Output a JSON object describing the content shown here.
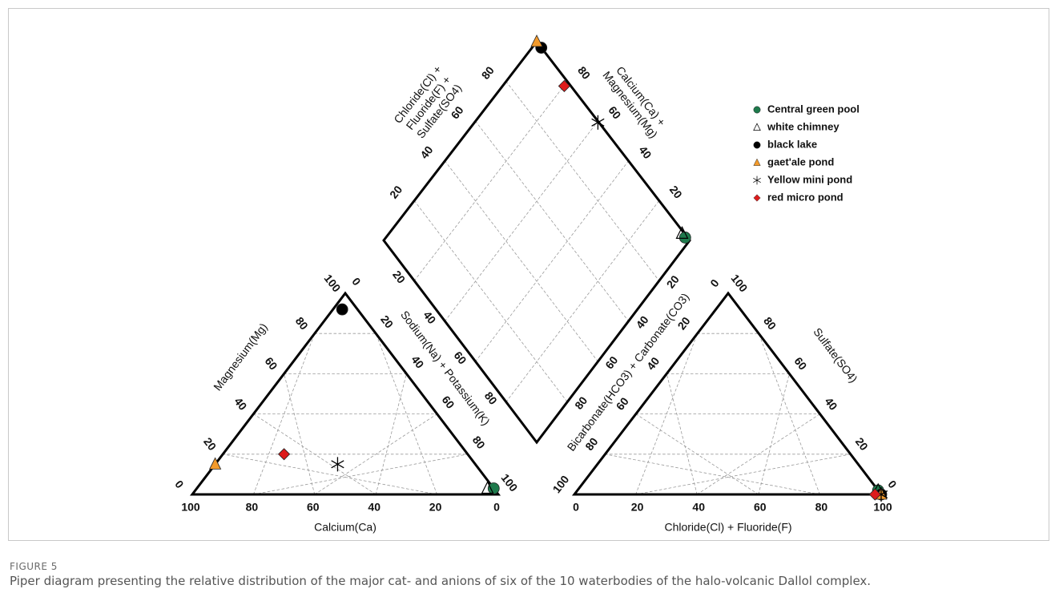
{
  "figure": {
    "label": "FIGURE 5",
    "caption": "Piper diagram presenting the relative distribution of the major cat- and anions of six of the 10 waterbodies of the halo-volcanic Dallol complex."
  },
  "chart_data": {
    "type": "scatter",
    "subtype": "piper-diagram",
    "grid": true,
    "legend_position": "top-right",
    "cation_triangle": {
      "bottom_axis_label": "Calcium(Ca)",
      "bottom_ticks": [
        "100",
        "80",
        "60",
        "40",
        "20",
        "0"
      ],
      "left_axis_label": "Magnesium(Mg)",
      "left_ticks": [
        "0",
        "20",
        "40",
        "60",
        "80",
        "100"
      ],
      "right_axis_label": "Sodium(Na) + Potassium(K)",
      "right_ticks": [
        "0",
        "20",
        "40",
        "60",
        "80",
        "100"
      ]
    },
    "anion_triangle": {
      "bottom_axis_label": "Chloride(Cl) + Fluoride(F)",
      "bottom_ticks": [
        "0",
        "20",
        "40",
        "60",
        "80",
        "100"
      ],
      "left_axis_label": "Bicarbonate(HCO3) + Carbonate(CO3)",
      "left_ticks": [
        "100",
        "80",
        "60",
        "40",
        "20",
        "0"
      ],
      "right_axis_label": "Sulfate(SO4)",
      "right_ticks": [
        "100",
        "80",
        "60",
        "40",
        "20",
        "0"
      ]
    },
    "diamond": {
      "upper_left_axis_label": "Chloride(Cl) + Fluoride(F) + Sulfate(SO4)",
      "upper_left_ticks": [
        "20",
        "40",
        "60",
        "80"
      ],
      "upper_right_axis_label": "Calcium(Ca) + Magnesium(Mg)",
      "upper_right_ticks": [
        "80",
        "60",
        "40",
        "20"
      ],
      "lower_left_ticks": [
        "20",
        "40",
        "60",
        "80"
      ],
      "lower_right_ticks": [
        "20",
        "40",
        "60",
        "80"
      ]
    },
    "series": [
      {
        "name": "Central green pool",
        "marker": "circle",
        "color": "#1e7a4c",
        "ca": 0,
        "mg": 3,
        "cl_f": 98,
        "so4": 2
      },
      {
        "name": "white chimney",
        "marker": "triangle-open",
        "color": "#000000",
        "ca": 2,
        "mg": 3,
        "cl_f": 98,
        "so4": 2
      },
      {
        "name": "black lake",
        "marker": "circle",
        "color": "#000000",
        "ca": 5,
        "mg": 92,
        "cl_f": 100,
        "so4": 0
      },
      {
        "name": "gaet'ale pond",
        "marker": "triangle",
        "color": "#f39a2b",
        "ca": 85,
        "mg": 15,
        "cl_f": 100,
        "so4": 0
      },
      {
        "name": "Yellow mini pond",
        "marker": "asterisk",
        "color": "#000000",
        "ca": 45,
        "mg": 15,
        "cl_f": 100,
        "so4": 0
      },
      {
        "name": "red micro pond",
        "marker": "diamond",
        "color": "#dd1c1c",
        "ca": 60,
        "mg": 20,
        "cl_f": 98,
        "so4": 0
      }
    ]
  }
}
